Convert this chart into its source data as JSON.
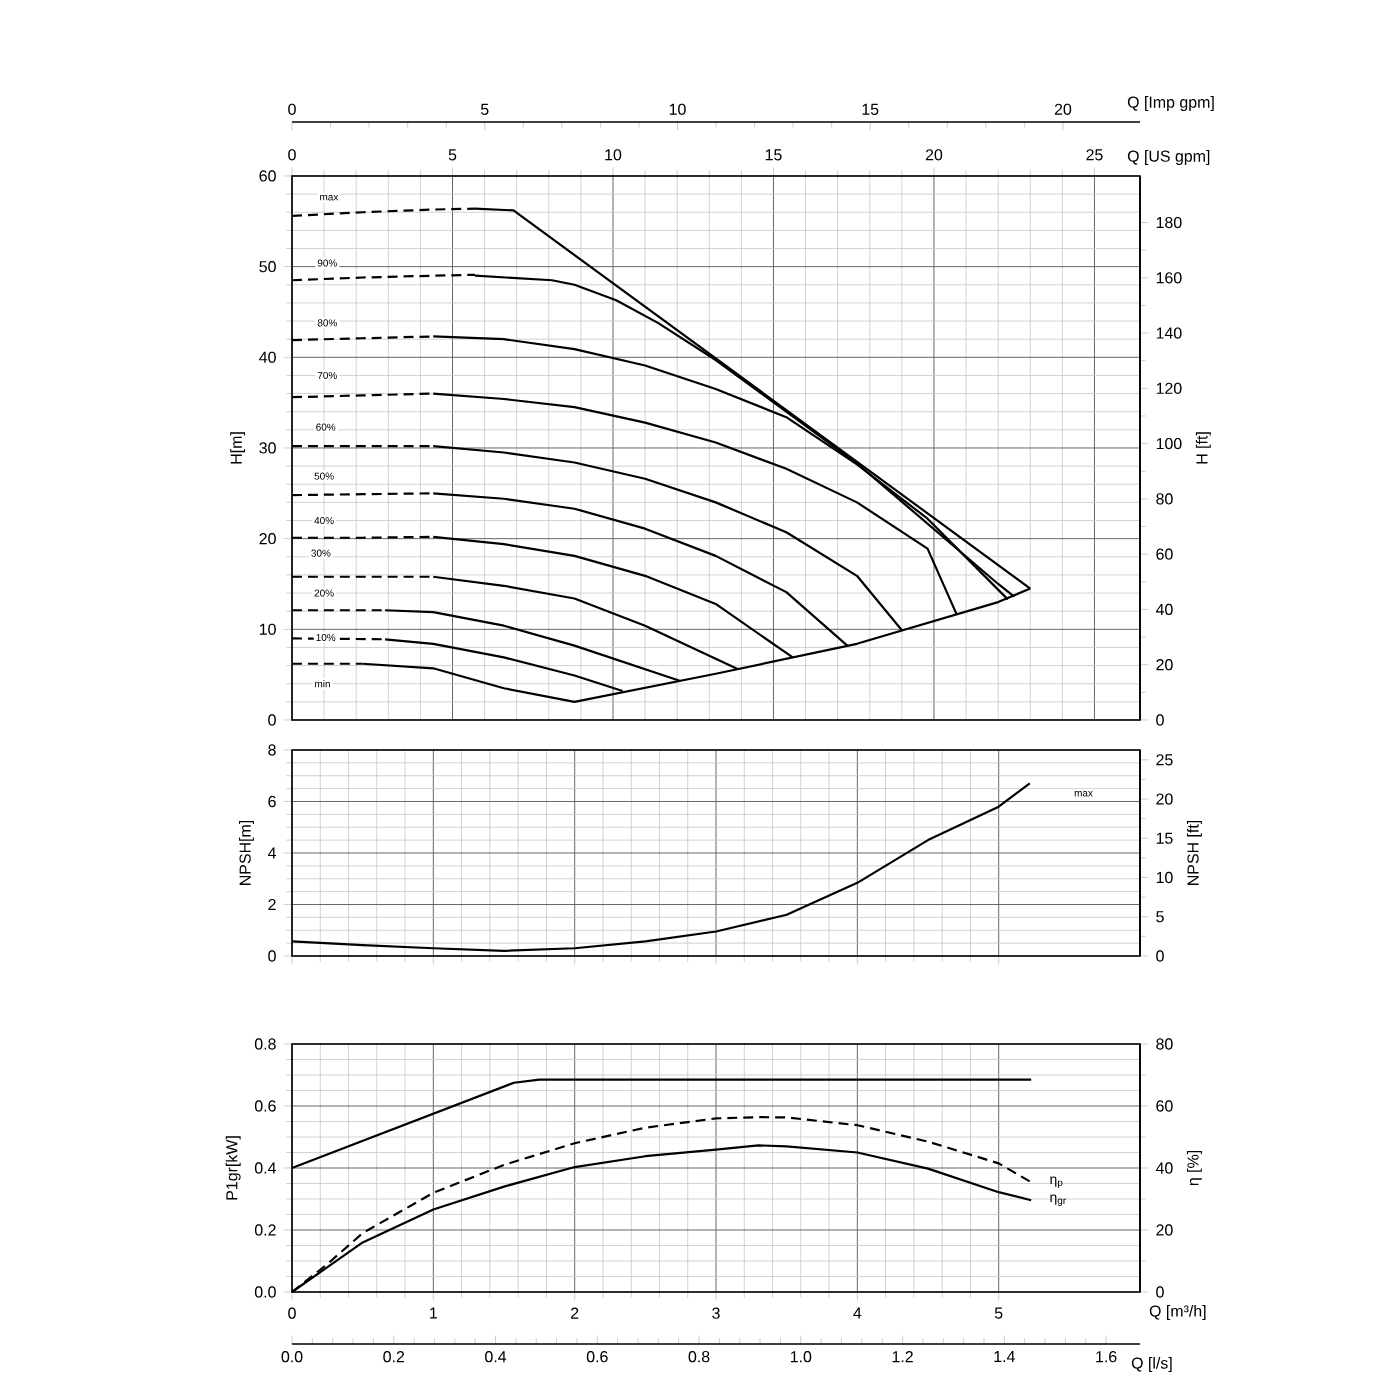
{
  "chart_data": [
    {
      "type": "line",
      "xlim": [
        0,
        26.42
      ],
      "ylim": [
        0,
        60
      ],
      "xticks": [
        0,
        5,
        10,
        15,
        20,
        25
      ],
      "yticks": [
        0,
        10,
        20,
        30,
        40,
        50,
        60
      ],
      "y2lim": [
        0,
        196.85
      ],
      "y2ticks": [
        0,
        20,
        40,
        60,
        80,
        100,
        120,
        140,
        160,
        180
      ],
      "x2lim": [
        0,
        22.0
      ],
      "x2ticks": [
        0,
        5,
        10,
        15,
        20
      ],
      "xlabel": "Q [US gpm]",
      "ylabel": "H[m]",
      "y2label": "H [ft]",
      "x2label": "Q [Imp gpm]",
      "grid": true,
      "annotations": [
        {
          "text": "max",
          "x": 1.15,
          "y": 57.6
        },
        {
          "text": "90%",
          "x": 1.1,
          "y": 50.4
        },
        {
          "text": "80%",
          "x": 1.1,
          "y": 43.8
        },
        {
          "text": "70%",
          "x": 1.1,
          "y": 38.0
        },
        {
          "text": "60%",
          "x": 1.05,
          "y": 32.3
        },
        {
          "text": "50%",
          "x": 1.0,
          "y": 26.9
        },
        {
          "text": "40%",
          "x": 1.0,
          "y": 22.0
        },
        {
          "text": "30%",
          "x": 0.9,
          "y": 18.4
        },
        {
          "text": "20%",
          "x": 1.0,
          "y": 14.0
        },
        {
          "text": "10%",
          "x": 1.05,
          "y": 9.1
        },
        {
          "text": "min",
          "x": 0.95,
          "y": 4.0
        }
      ],
      "series": [
        {
          "color": "#000000",
          "line_style": "dashed",
          "x": [
            0,
            2.2,
            4.4,
            5.7
          ],
          "values": [
            55.6,
            56.0,
            56.3,
            56.4
          ]
        },
        {
          "color": "#000000",
          "line_style": "solid",
          "x": [
            5.7,
            6.9,
            23.0
          ],
          "values": [
            56.4,
            56.2,
            14.5
          ]
        },
        {
          "color": "#000000",
          "line_style": "dashed",
          "x": [
            0,
            2.2,
            4.4,
            5.7
          ],
          "values": [
            48.5,
            48.8,
            49.0,
            49.1
          ]
        },
        {
          "color": "#000000",
          "line_style": "solid",
          "x": [
            5.7,
            8.1,
            8.8,
            10.1,
            11.4,
            13.2,
            17.6,
            22.0,
            22.5
          ],
          "values": [
            49.0,
            48.5,
            48.0,
            46.3,
            43.8,
            39.7,
            28.3,
            15.0,
            13.6
          ]
        },
        {
          "color": "#000000",
          "line_style": "dashed",
          "x": [
            0,
            2.2,
            4.4
          ],
          "values": [
            41.9,
            42.1,
            42.3
          ]
        },
        {
          "color": "#000000",
          "line_style": "solid",
          "x": [
            4.4,
            6.6,
            8.8,
            11.0,
            13.2,
            15.4,
            17.6,
            19.8,
            22.3
          ],
          "values": [
            42.3,
            42.0,
            40.9,
            39.1,
            36.5,
            33.4,
            28.2,
            22.2,
            13.3
          ]
        },
        {
          "color": "#000000",
          "line_style": "dashed",
          "x": [
            0,
            2.2,
            4.4
          ],
          "values": [
            35.6,
            35.8,
            36.0
          ]
        },
        {
          "color": "#000000",
          "line_style": "solid",
          "x": [
            4.4,
            6.6,
            8.8,
            11.0,
            13.2,
            15.4,
            17.6,
            19.8,
            20.7
          ],
          "values": [
            36.0,
            35.4,
            34.5,
            32.8,
            30.6,
            27.7,
            24.0,
            18.9,
            11.7
          ]
        },
        {
          "color": "#000000",
          "line_style": "dashed",
          "x": [
            0,
            2.2,
            4.4
          ],
          "values": [
            30.2,
            30.2,
            30.2
          ]
        },
        {
          "color": "#000000",
          "line_style": "solid",
          "x": [
            4.4,
            6.6,
            8.8,
            11.0,
            13.2,
            15.4,
            17.6,
            19.0
          ],
          "values": [
            30.2,
            29.5,
            28.4,
            26.6,
            24.0,
            20.7,
            15.9,
            9.9
          ]
        },
        {
          "color": "#000000",
          "line_style": "dashed",
          "x": [
            0,
            2.2,
            4.4
          ],
          "values": [
            24.8,
            24.9,
            25.0
          ]
        },
        {
          "color": "#000000",
          "line_style": "solid",
          "x": [
            4.4,
            6.6,
            8.8,
            11.0,
            13.2,
            15.4,
            17.3
          ],
          "values": [
            25.0,
            24.4,
            23.3,
            21.1,
            18.1,
            14.1,
            8.2
          ]
        },
        {
          "color": "#000000",
          "line_style": "dashed",
          "x": [
            0,
            2.2,
            4.4
          ],
          "values": [
            20.1,
            20.1,
            20.2
          ]
        },
        {
          "color": "#000000",
          "line_style": "solid",
          "x": [
            4.4,
            6.6,
            8.8,
            11.0,
            13.2,
            15.6
          ],
          "values": [
            20.2,
            19.4,
            18.1,
            15.9,
            12.8,
            6.9
          ]
        },
        {
          "color": "#000000",
          "line_style": "dashed",
          "x": [
            0,
            2.2,
            4.4
          ],
          "values": [
            15.8,
            15.8,
            15.8
          ]
        },
        {
          "color": "#000000",
          "line_style": "solid",
          "x": [
            4.4,
            6.6,
            8.8,
            11.0,
            13.9
          ],
          "values": [
            15.8,
            14.8,
            13.4,
            10.4,
            5.6
          ]
        },
        {
          "color": "#000000",
          "line_style": "dashed",
          "x": [
            0,
            2.9
          ],
          "values": [
            12.1,
            12.1
          ]
        },
        {
          "color": "#000000",
          "line_style": "solid",
          "x": [
            2.9,
            4.4,
            6.6,
            8.8,
            12.1
          ],
          "values": [
            12.1,
            11.9,
            10.4,
            8.2,
            4.3
          ]
        },
        {
          "color": "#000000",
          "line_style": "dashed",
          "x": [
            0,
            2.9
          ],
          "values": [
            9.0,
            8.9
          ]
        },
        {
          "color": "#000000",
          "line_style": "solid",
          "x": [
            2.9,
            4.4,
            6.6,
            8.8,
            10.3
          ],
          "values": [
            8.9,
            8.4,
            6.9,
            4.9,
            3.2
          ]
        },
        {
          "color": "#000000",
          "line_style": "dashed",
          "x": [
            0,
            2.2
          ],
          "values": [
            6.2,
            6.2
          ]
        },
        {
          "color": "#000000",
          "line_style": "solid",
          "x": [
            2.2,
            4.4,
            6.6,
            8.8,
            13.2,
            17.6,
            22.0,
            23.0
          ],
          "values": [
            6.2,
            5.7,
            3.5,
            2.0,
            5.1,
            8.4,
            13.0,
            14.5
          ]
        }
      ]
    },
    {
      "type": "line",
      "xlim": [
        0,
        6
      ],
      "ylim": [
        0,
        8
      ],
      "xticks": [
        0,
        1,
        2,
        3,
        4,
        5
      ],
      "yticks": [
        0,
        2,
        4,
        6,
        8
      ],
      "y2lim": [
        0,
        26.25
      ],
      "y2ticks": [
        0,
        5,
        10,
        15,
        20,
        25
      ],
      "ylabel": "NPSH[m]",
      "y2label": "NPSH [ft]",
      "grid": true,
      "tick_labels": "y",
      "annotations": [
        {
          "text": "max",
          "x": 5.6,
          "y": 6.3
        }
      ],
      "series": [
        {
          "color": "#000000",
          "line_style": "solid",
          "x": [
            0,
            0.5,
            1,
            1.5,
            2,
            2.5,
            3,
            3.5,
            4,
            4.5,
            5,
            5.22
          ],
          "values": [
            0.57,
            0.42,
            0.3,
            0.2,
            0.3,
            0.57,
            0.95,
            1.6,
            2.84,
            4.5,
            5.8,
            6.7
          ]
        }
      ]
    },
    {
      "type": "line",
      "xlim": [
        0,
        6
      ],
      "ylim": [
        0,
        0.8
      ],
      "xticks": [
        0,
        1,
        2,
        3,
        4,
        5
      ],
      "yticks": [
        {
          "value": 0,
          "label": "0.0"
        },
        0.2,
        0.4,
        0.6,
        0.8
      ],
      "y2lim": [
        0,
        80
      ],
      "y2ticks": [
        0,
        20,
        40,
        60,
        80
      ],
      "x2lim": [
        0,
        1.6667
      ],
      "x2ticks": [
        {
          "value": 0,
          "label": "0.0"
        },
        0.2,
        0.4,
        0.6,
        0.8,
        {
          "value": 1,
          "label": "1.0"
        },
        1.2,
        1.4,
        1.6
      ],
      "xlabel": "Q [m³/h]",
      "x2label": "Q [l/s]",
      "ylabel": "P1gr[kW]",
      "y2label": "η [%]",
      "grid": true,
      "series": [
        {
          "color": "#000000",
          "line_style": "solid",
          "x": [
            0,
            1.57,
            1.75,
            5.23
          ],
          "values": [
            0.4,
            0.675,
            0.685,
            0.685
          ]
        },
        {
          "name": "η$_{p}$",
          "axis": "y2",
          "color": "#000000",
          "line_style": "dashed",
          "x": [
            0,
            0.25,
            0.5,
            1.0,
            1.5,
            2.0,
            2.5,
            3.0,
            3.3,
            3.5,
            4.0,
            4.5,
            5.0,
            5.23
          ],
          "values": [
            0,
            9,
            19,
            32,
            41,
            48,
            53,
            56,
            56.4,
            56.3,
            53.8,
            48.5,
            41.5,
            35.4
          ]
        },
        {
          "name": "η$_{gr}$",
          "axis": "y2",
          "color": "#000000",
          "line_style": "solid",
          "x": [
            0,
            0.5,
            1.0,
            1.5,
            2.0,
            2.5,
            3.0,
            3.3,
            3.5,
            4.0,
            4.5,
            5.0,
            5.23
          ],
          "values": [
            0,
            16,
            26.6,
            34,
            40.3,
            43.8,
            45.9,
            47.3,
            47.0,
            45.0,
            39.8,
            32.2,
            29.6
          ]
        }
      ]
    }
  ]
}
